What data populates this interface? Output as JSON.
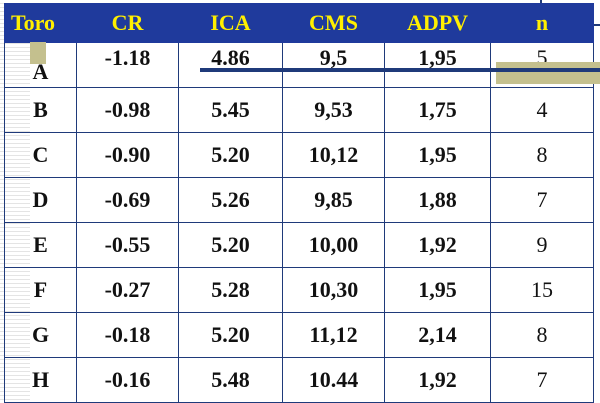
{
  "table": {
    "headers": [
      "Toro",
      "CR",
      "ICA",
      "CMS",
      "ADPV",
      "n"
    ],
    "rows": [
      [
        "A",
        "-1.18",
        "4.86",
        "9,5",
        "1,95",
        "5"
      ],
      [
        "B",
        "-0.98",
        "5.45",
        "9,53",
        "1,75",
        "4"
      ],
      [
        "C",
        "-0.90",
        "5.20",
        "10,12",
        "1,95",
        "8"
      ],
      [
        "D",
        "-0.69",
        "5.26",
        "9,85",
        "1,88",
        "7"
      ],
      [
        "E",
        "-0.55",
        "5.20",
        "10,00",
        "1,92",
        "9"
      ],
      [
        "F",
        "-0.27",
        "5.28",
        "10,30",
        "1,95",
        "15"
      ],
      [
        "G",
        "-0.18",
        "5.20",
        "11,12",
        "2,14",
        "8"
      ],
      [
        "H",
        "-0.16",
        "5.48",
        "10.44",
        "1,92",
        "7"
      ]
    ]
  },
  "colors": {
    "header_bg": "#1f3a9c",
    "header_text": "#ffef00",
    "accent": "#c4c08e",
    "rule": "#1f3a7a"
  }
}
